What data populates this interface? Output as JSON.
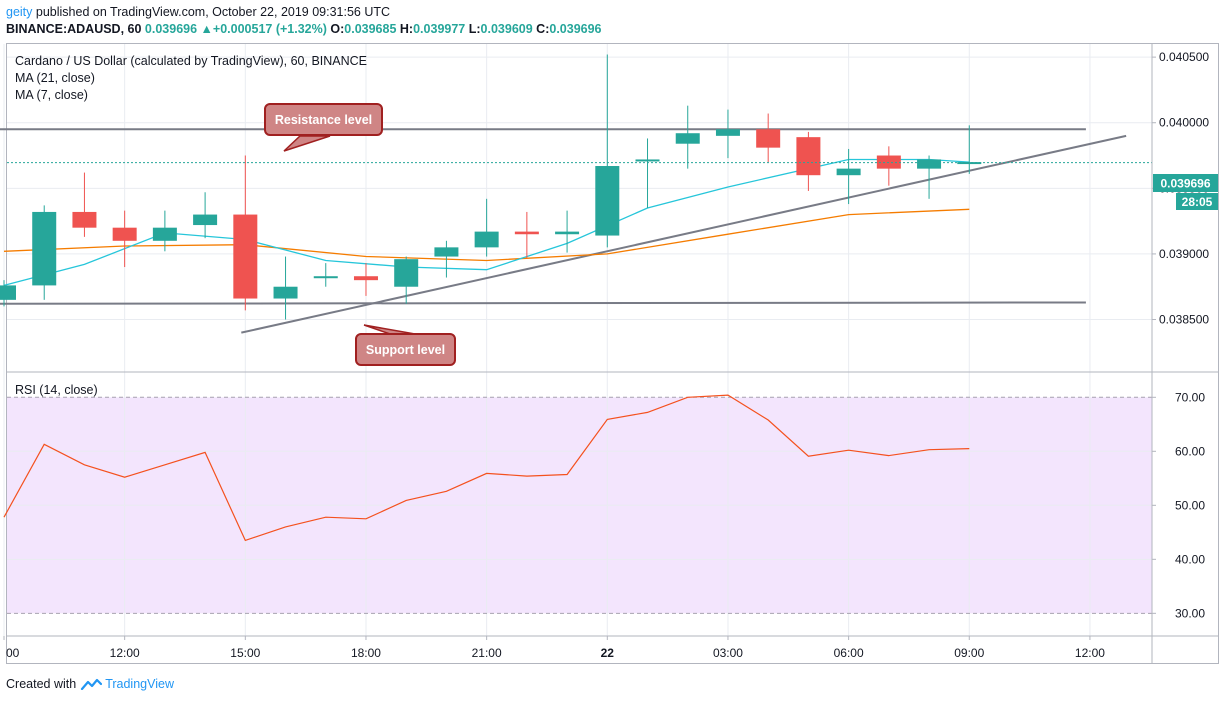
{
  "header": {
    "user": "geity",
    "published_text": "published on TradingView.com, October 22, 2019 09:31:56 UTC",
    "symbol": "BINANCE:ADAUSD, 60",
    "last": "0.039696",
    "change": "+0.000517 (+1.32%)",
    "o_label": "O:",
    "o": "0.039685",
    "h_label": "H:",
    "h": "0.039977",
    "l_label": "L:",
    "l": "0.039609",
    "c_label": "C:",
    "c": "0.039696"
  },
  "legend": {
    "title": "Cardano / US Dollar (calculated by TradingView), 60, BINANCE",
    "ma21": "MA (21, close)",
    "ma7": "MA (7, close)",
    "rsi": "RSI (14, close)"
  },
  "annotations": {
    "resistance": "Resistance level",
    "support": "Support level"
  },
  "price_labels": {
    "current": "0.039696",
    "countdown": "28:05"
  },
  "footer": {
    "created_with": "Created with",
    "brand": "TradingView"
  },
  "colors": {
    "up": "#26a69a",
    "down": "#ef5350",
    "ma7": "#26c6da",
    "ma21": "#f57c00",
    "rsi": "#f4511e",
    "rsi_band": "#f3e5fd",
    "trendline": "#787b86",
    "callout_fill": "#cf8585",
    "callout_border": "#a02020",
    "grid": "#e9ecf1"
  },
  "chart_data": [
    {
      "type": "candlestick",
      "title": "Cardano / US Dollar (calculated by TradingView), 60, BINANCE",
      "ylim": [
        0.0381,
        0.0406
      ],
      "yticks": [
        "0.040500",
        "0.040000",
        "0.039500",
        "0.039000",
        "0.038500"
      ],
      "yticks_values": [
        0.0405,
        0.04,
        0.0395,
        0.039,
        0.0385
      ],
      "xticks": [
        "00",
        "12:00",
        "15:00",
        "18:00",
        "21:00",
        "22",
        "03:00",
        "06:00",
        "09:00",
        "12:00"
      ],
      "xticks_hour": [
        9,
        12,
        15,
        18,
        21,
        24,
        27,
        30,
        33,
        36
      ],
      "candles": [
        {
          "h": 9,
          "o": 0.03865,
          "h_": 0.0388,
          "l": 0.0386,
          "c": 0.03876
        },
        {
          "h": 10,
          "o": 0.03876,
          "h_": 0.03937,
          "l": 0.03865,
          "c": 0.03932
        },
        {
          "h": 11,
          "o": 0.03932,
          "h_": 0.03962,
          "l": 0.03913,
          "c": 0.0392
        },
        {
          "h": 12,
          "o": 0.0392,
          "h_": 0.03933,
          "l": 0.0389,
          "c": 0.0391
        },
        {
          "h": 13,
          "o": 0.0391,
          "h_": 0.03933,
          "l": 0.03902,
          "c": 0.0392
        },
        {
          "h": 14,
          "o": 0.03922,
          "h_": 0.03947,
          "l": 0.03912,
          "c": 0.0393
        },
        {
          "h": 15,
          "o": 0.0393,
          "h_": 0.03975,
          "l": 0.03857,
          "c": 0.03866
        },
        {
          "h": 16,
          "o": 0.03866,
          "h_": 0.03898,
          "l": 0.0385,
          "c": 0.03875
        },
        {
          "h": 17,
          "o": 0.03883,
          "h_": 0.03893,
          "l": 0.03875,
          "c": 0.03883
        },
        {
          "h": 18,
          "o": 0.03883,
          "h_": 0.03893,
          "l": 0.03868,
          "c": 0.0388
        },
        {
          "h": 19,
          "o": 0.03875,
          "h_": 0.03898,
          "l": 0.03862,
          "c": 0.03896
        },
        {
          "h": 20,
          "o": 0.03898,
          "h_": 0.0391,
          "l": 0.03882,
          "c": 0.03905
        },
        {
          "h": 21,
          "o": 0.03905,
          "h_": 0.03942,
          "l": 0.03898,
          "c": 0.03917
        },
        {
          "h": 22,
          "o": 0.03917,
          "h_": 0.03932,
          "l": 0.03897,
          "c": 0.03915
        },
        {
          "h": 23,
          "o": 0.03915,
          "h_": 0.03933,
          "l": 0.03901,
          "c": 0.03917
        },
        {
          "h": 24,
          "o": 0.03914,
          "h_": 0.04052,
          "l": 0.03905,
          "c": 0.03967
        },
        {
          "h": 25,
          "o": 0.03972,
          "h_": 0.03988,
          "l": 0.03935,
          "c": 0.03972
        },
        {
          "h": 26,
          "o": 0.03984,
          "h_": 0.04013,
          "l": 0.03965,
          "c": 0.03992
        },
        {
          "h": 27,
          "o": 0.0399,
          "h_": 0.0401,
          "l": 0.03973,
          "c": 0.03995
        },
        {
          "h": 28,
          "o": 0.03995,
          "h_": 0.04007,
          "l": 0.0397,
          "c": 0.03981
        },
        {
          "h": 29,
          "o": 0.03989,
          "h_": 0.03993,
          "l": 0.03948,
          "c": 0.0396
        },
        {
          "h": 30,
          "o": 0.0396,
          "h_": 0.0398,
          "l": 0.03938,
          "c": 0.03965
        },
        {
          "h": 31,
          "o": 0.03975,
          "h_": 0.03982,
          "l": 0.03952,
          "c": 0.03965
        },
        {
          "h": 32,
          "o": 0.03965,
          "h_": 0.03975,
          "l": 0.03942,
          "c": 0.03972
        },
        {
          "h": 33,
          "o": 0.03969,
          "h_": 0.03998,
          "l": 0.03961,
          "c": 0.0397
        }
      ],
      "ma7": [
        [
          9,
          0.03876
        ],
        [
          11,
          0.03892
        ],
        [
          13,
          0.03916
        ],
        [
          15,
          0.03911
        ],
        [
          17,
          0.03895
        ],
        [
          19,
          0.0389
        ],
        [
          21,
          0.03888
        ],
        [
          23,
          0.03908
        ],
        [
          25,
          0.03935
        ],
        [
          27,
          0.03951
        ],
        [
          29,
          0.03965
        ],
        [
          30,
          0.03972
        ],
        [
          32,
          0.03972
        ],
        [
          33,
          0.0397
        ]
      ],
      "ma21": [
        [
          9,
          0.03902
        ],
        [
          12,
          0.03906
        ],
        [
          15,
          0.03907
        ],
        [
          18,
          0.03898
        ],
        [
          21,
          0.03895
        ],
        [
          24,
          0.039
        ],
        [
          27,
          0.03915
        ],
        [
          30,
          0.0393
        ],
        [
          33,
          0.03934
        ]
      ],
      "lines": [
        {
          "name": "resistance",
          "from": [
            8.8,
            0.03995
          ],
          "to": [
            35.9,
            0.03995
          ]
        },
        {
          "name": "support",
          "from": [
            8.8,
            0.03862
          ],
          "to": [
            35.9,
            0.03863
          ]
        },
        {
          "name": "trendline",
          "from": [
            14.9,
            0.0384
          ],
          "to": [
            36.9,
            0.0399
          ]
        }
      ],
      "current_price": 0.039696
    },
    {
      "type": "line",
      "title": "RSI (14, close)",
      "ylim": [
        25.8,
        74.5
      ],
      "yticks": [
        "70.00",
        "60.00",
        "50.00",
        "40.00",
        "30.00"
      ],
      "yticks_values": [
        70,
        60,
        50,
        40,
        30
      ],
      "band": [
        30,
        70
      ],
      "points": [
        [
          9,
          47.8
        ],
        [
          10,
          61.3
        ],
        [
          11,
          57.5
        ],
        [
          12,
          55.2
        ],
        [
          13,
          57.5
        ],
        [
          14,
          59.8
        ],
        [
          15,
          43.5
        ],
        [
          16,
          46.0
        ],
        [
          17,
          47.8
        ],
        [
          18,
          47.5
        ],
        [
          19,
          50.9
        ],
        [
          20,
          52.6
        ],
        [
          21,
          55.9
        ],
        [
          22,
          55.4
        ],
        [
          23,
          55.7
        ],
        [
          24,
          65.9
        ],
        [
          25,
          67.2
        ],
        [
          26,
          70.0
        ],
        [
          27,
          70.4
        ],
        [
          28,
          65.8
        ],
        [
          29,
          59.1
        ],
        [
          30,
          60.2
        ],
        [
          31,
          59.2
        ],
        [
          32,
          60.3
        ],
        [
          33,
          60.5
        ]
      ]
    }
  ]
}
